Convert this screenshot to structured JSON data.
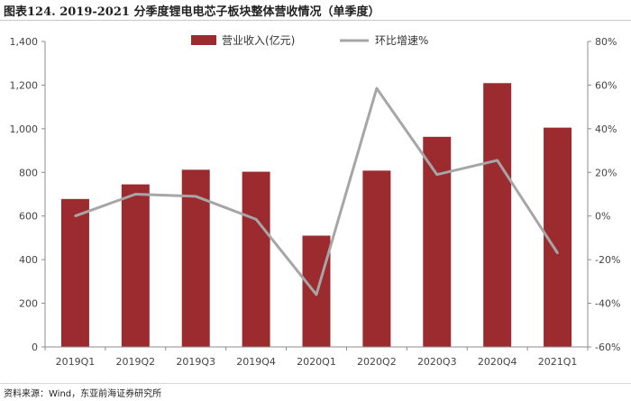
{
  "title": "图表124. 2019-2021 分季度锂电电芯子板块整体营收情况（单季度）",
  "source": "资料来源：Wind，东亚前海证券研究所",
  "colors": {
    "bar": "#9b2b2e",
    "line": "#a6a6a6"
  },
  "chart_data": {
    "type": "bar",
    "categories": [
      "2019Q1",
      "2019Q2",
      "2019Q3",
      "2019Q4",
      "2020Q1",
      "2020Q2",
      "2020Q3",
      "2020Q4",
      "2021Q1"
    ],
    "series": [
      {
        "name": "营业收入(亿元)",
        "type": "bar",
        "axis": "left",
        "values": [
          678,
          745,
          812,
          803,
          510,
          808,
          963,
          1209,
          1005
        ]
      },
      {
        "name": "环比增速%",
        "type": "line",
        "axis": "right",
        "values": [
          0,
          10,
          9,
          -1.5,
          -36,
          58.5,
          19,
          25.5,
          -17
        ]
      }
    ],
    "y_left": {
      "ylim": [
        0,
        1400
      ],
      "ticks": [
        0,
        200,
        400,
        600,
        800,
        1000,
        1200,
        1400
      ],
      "tick_labels": [
        "0",
        "200",
        "400",
        "600",
        "800",
        "1,000",
        "1,200",
        "1,400"
      ]
    },
    "y_right": {
      "ylim": [
        -60,
        80
      ],
      "ticks": [
        -60,
        -40,
        -20,
        0,
        20,
        40,
        60,
        80
      ],
      "tick_labels": [
        "-60%",
        "-40%",
        "-20%",
        "0%",
        "20%",
        "40%",
        "60%",
        "80%"
      ]
    },
    "grid": false,
    "legend": "top-center"
  }
}
